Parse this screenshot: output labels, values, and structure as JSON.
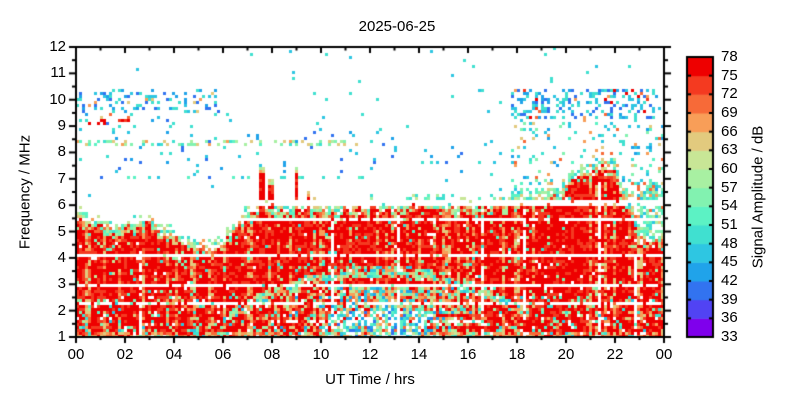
{
  "title": "2025-06-25",
  "axes": {
    "x": {
      "label": "UT Time / hrs",
      "range": [
        0,
        24
      ],
      "tick_values": [
        0,
        2,
        4,
        6,
        8,
        10,
        12,
        14,
        16,
        18,
        20,
        22,
        24
      ],
      "tick_labels": [
        "00",
        "02",
        "04",
        "06",
        "08",
        "10",
        "12",
        "14",
        "16",
        "18",
        "20",
        "22",
        "00"
      ],
      "minor_step": 1
    },
    "y": {
      "label": "Frequency / MHz",
      "range": [
        1,
        12
      ],
      "tick_values": [
        1,
        2,
        3,
        4,
        5,
        6,
        7,
        8,
        9,
        10,
        11,
        12
      ],
      "tick_labels": [
        "1",
        "2",
        "3",
        "4",
        "5",
        "6",
        "7",
        "8",
        "9",
        "10",
        "11",
        "12"
      ],
      "minor_step": 0.5
    }
  },
  "colorbar": {
    "label": "Signal Amplitude / dB",
    "min": 33,
    "max": 78,
    "step": 3,
    "tick_values": [
      33,
      36,
      39,
      42,
      45,
      48,
      51,
      54,
      57,
      60,
      63,
      66,
      69,
      72,
      75,
      78
    ],
    "tick_labels": [
      "33",
      "36",
      "39",
      "42",
      "45",
      "48",
      "51",
      "54",
      "57",
      "60",
      "63",
      "66",
      "69",
      "72",
      "75",
      "78"
    ],
    "colors": [
      "#7f00ec",
      "#5143f3",
      "#3273f0",
      "#20a3ea",
      "#2ec6e2",
      "#40e0d0",
      "#5cf2c4",
      "#82f2b0",
      "#a8f0a2",
      "#c8e696",
      "#e2ca7e",
      "#f89e58",
      "#f76a38",
      "#f43a20",
      "#ee0000"
    ]
  },
  "chart_data": {
    "type": "heatmap",
    "title": "2025-06-25",
    "xlabel": "UT Time / hrs",
    "ylabel": "Frequency / MHz",
    "zlabel": "Signal Amplitude / dB",
    "xlim": [
      0,
      24
    ],
    "ylim": [
      1,
      12
    ],
    "zlim": [
      33,
      78
    ],
    "summary": "Ionosonde-style HF spectrogram. Strong 75-78 dB (red) signal fills 1 MHz up to an upper edge near 5.5 MHz at 00 UT, dipping to ~4.3 MHz at 05 UT, flat near 6 MHz from 07-19 UT, rising to a ~7.5 MHz peak at 21-22 UT, collapsing to ~4.6-5 MHz by 23 UT. Weak scattered echoes (blue/cyan) from 7-10.3 MHz at night, dense bands near 10 MHz before 06 UT and 9.3-10.3 MHz after 18 UT, a cyan/green dash row at 8.3 MHz until ~12 UT, and a few red interference dashes near 9.1 MHz at 01-02 UT. Signal weakens (green/cyan/blue) below 3 MHz around midday with a cyan arc peaking near 3.5 MHz at ~12.4 UT. Horizontal white RFI gaps near 6.05, 5.5, 4.1, 2.9 and 2.3 MHz.",
    "envelope": {
      "t_step": 0.5,
      "f": [
        5.65,
        5.45,
        5.2,
        5.05,
        5.1,
        5.3,
        5.35,
        5.05,
        4.8,
        4.6,
        4.4,
        4.3,
        4.55,
        5.1,
        5.55,
        5.7,
        5.8,
        5.75,
        5.8,
        5.85,
        5.95,
        5.6,
        5.9,
        5.95,
        6.0,
        5.95,
        5.7,
        5.9,
        6.05,
        6.05,
        6.0,
        5.95,
        5.9,
        5.95,
        6.0,
        6.0,
        6.0,
        6.05,
        6.1,
        6.3,
        6.65,
        7.05,
        7.3,
        7.45,
        7.3,
        6.0,
        4.9,
        4.6,
        5.05
      ]
    },
    "white_lines": [
      {
        "f": 6.05,
        "hw": 0.11,
        "keep_white": 0.93
      },
      {
        "f": 5.5,
        "hw": 0.06,
        "keep_white": 0.9
      },
      {
        "f": 4.08,
        "hw": 0.06,
        "keep_white": 0.92
      },
      {
        "f": 2.92,
        "hw": 0.06,
        "keep_white": 0.9
      },
      {
        "f": 2.27,
        "hw": 0.06,
        "keep_white": 0.72
      },
      {
        "f": 1.55,
        "hw": 0.06,
        "keep_white": 0.5,
        "t0": 8,
        "t1": 17
      }
    ],
    "vertical_dropouts": [
      {
        "t": 2.6,
        "fmax": 4.3
      },
      {
        "t": 10.45,
        "fmax": 5.5
      },
      {
        "t": 13.15,
        "fmax": 5.6
      },
      {
        "t": 16.55,
        "fmax": 5.8
      },
      {
        "t": 18.3,
        "fmax": 5.9
      },
      {
        "t": 21.35,
        "fmax": 6.9
      },
      {
        "t": 22.85,
        "fmax": 4.2
      }
    ],
    "spikes": [
      {
        "t": 7.6,
        "fmax": 7.45
      },
      {
        "t": 7.95,
        "fmax": 7.05
      },
      {
        "t": 9.0,
        "fmax": 7.5
      },
      {
        "t": 9.45,
        "fmax": 6.55
      }
    ],
    "arc": {
      "t_center": 12.4,
      "f_peak": 3.5,
      "k": 0.045,
      "hw": 0.22,
      "t0": 6.3,
      "t1": 18.3
    },
    "strong": {
      "white_speck_p": 0.018,
      "green_fleck_p": 0.055,
      "orange_streak_threshold": 0.72,
      "orange_streak_p": 0.6,
      "night_bottom_f": 2.6,
      "night_speckle_p": 0.16,
      "bottom_orange_f": 1.15,
      "bottom_orange_p": 0.55,
      "fringe_df": 0.28,
      "fringe_p": 0.6
    },
    "weak_midday": {
      "t0": 8.2,
      "t1": 17.2,
      "t_center": 12.7,
      "t_halfwidth": 4.5,
      "f_max": 3.0
    },
    "deep_weak": {
      "t0": 10.3,
      "t1": 14.6,
      "f_max": 2.0,
      "p": 0.55
    },
    "speckle_bands": [
      {
        "t0": 0,
        "t1": 6.3,
        "f0": 9.55,
        "f1": 10.35,
        "p": 0.22,
        "pal": [
          2,
          3,
          4,
          5
        ],
        "op": 0.02,
        "opal": [
          10,
          11
        ]
      },
      {
        "t0": 0.5,
        "t1": 2.4,
        "f0": 9.0,
        "f1": 9.25,
        "p": 0.2,
        "pal": [
          13,
          14
        ]
      },
      {
        "t0": 1.0,
        "t1": 2.6,
        "f0": 9.3,
        "f1": 9.5,
        "p": 0.12,
        "pal": [
          10,
          11,
          12
        ]
      },
      {
        "t0": 0,
        "t1": 12.3,
        "f0": 8.22,
        "f1": 8.45,
        "p": 0.3,
        "pal": [
          5,
          6,
          7,
          8
        ],
        "op": 0.05,
        "opal": [
          10,
          11
        ]
      },
      {
        "t0": 0,
        "t1": 12,
        "f0": 6.95,
        "f1": 7.15,
        "p": 0.1,
        "pal": [
          4,
          5,
          6
        ]
      },
      {
        "t0": 0,
        "t1": 6.3,
        "f0": 7.0,
        "f1": 9.55,
        "p": 0.05,
        "pal": [
          2,
          3,
          4,
          5
        ]
      },
      {
        "t0": 6.3,
        "t1": 17.8,
        "f0": 7.2,
        "f1": 8.8,
        "p": 0.03,
        "pal": [
          2,
          3,
          4
        ]
      },
      {
        "t0": 17.8,
        "t1": 24,
        "f0": 9.25,
        "f1": 10.35,
        "p": 0.3,
        "pal": [
          2,
          3,
          4,
          5
        ],
        "op": 0.05,
        "opal": [
          11,
          12,
          13,
          14
        ]
      },
      {
        "t0": 17.8,
        "t1": 24,
        "f0": 6.3,
        "f1": 9.25,
        "p": 0.1,
        "pal": [
          3,
          4,
          5,
          6,
          7
        ],
        "op": 0.04,
        "opal": [
          10,
          11,
          12
        ]
      },
      {
        "t0": 18,
        "t1": 19.6,
        "f0": 6.15,
        "f1": 6.7,
        "p": 0.35,
        "pal": [
          6,
          7,
          8
        ],
        "op": 0.06,
        "opal": [
          10,
          11
        ]
      },
      {
        "t0": 22.2,
        "t1": 24,
        "f0": 4.7,
        "f1": 6.9,
        "p": 0.38,
        "pal": [
          4,
          5,
          6,
          7,
          8
        ],
        "op": 0.1,
        "opal": [
          10,
          11,
          12
        ]
      },
      {
        "t0": 22.8,
        "t1": 24,
        "f0": 5.0,
        "f1": 6.5,
        "p": 0.18,
        "pal": [
          4,
          5,
          6,
          7
        ]
      },
      {
        "t0": 0,
        "t1": 24,
        "f0": 6.2,
        "f1": 12,
        "p": 0.008,
        "pal": [
          4,
          5
        ]
      }
    ],
    "fringe_above": {
      "df": 0.33,
      "p": 0.5,
      "pal": [
        5,
        6,
        7,
        8,
        9
      ],
      "op": 0.12,
      "opal": [
        10,
        11
      ]
    },
    "seed": 20250625
  }
}
